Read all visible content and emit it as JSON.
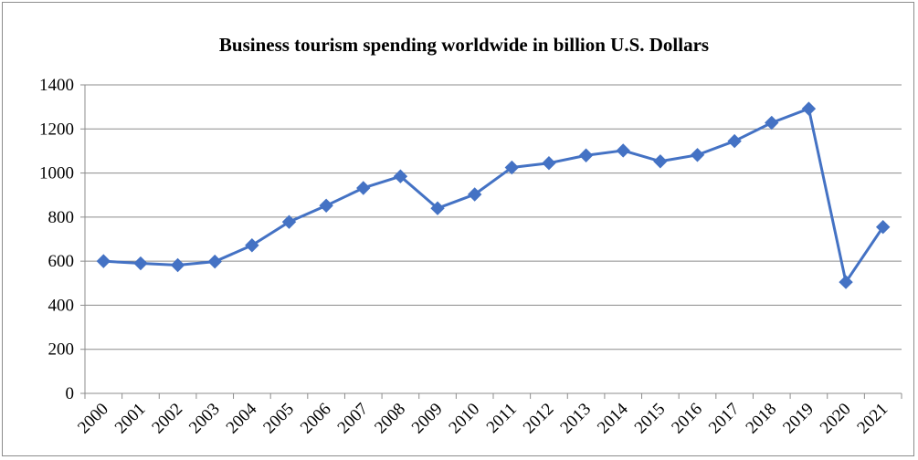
{
  "chart_data": {
    "type": "line",
    "title": "Business tourism spending worldwide  in billion U.S. Dollars",
    "xlabel": "",
    "ylabel": "",
    "categories": [
      "2000",
      "2001",
      "2002",
      "2003",
      "2004",
      "2005",
      "2006",
      "2007",
      "2008",
      "2009",
      "2010",
      "2011",
      "2012",
      "2013",
      "2014",
      "2015",
      "2016",
      "2017",
      "2018",
      "2019",
      "2020",
      "2021"
    ],
    "series": [
      {
        "values": [
          600,
          590,
          582,
          598,
          672,
          778,
          852,
          932,
          985,
          840,
          903,
          1025,
          1045,
          1080,
          1102,
          1053,
          1082,
          1145,
          1228,
          1292,
          505,
          755
        ],
        "color": "#4472C4",
        "marker": "diamond"
      }
    ],
    "ylim": [
      0,
      1400
    ],
    "yticks": [
      0,
      200,
      400,
      600,
      800,
      1000,
      1200,
      1400
    ],
    "grid": true,
    "legend": "none",
    "colors": {
      "series": "#4472C4",
      "grid": "#8c8c8c",
      "axis": "#8c8c8c",
      "text": "#000000"
    }
  }
}
